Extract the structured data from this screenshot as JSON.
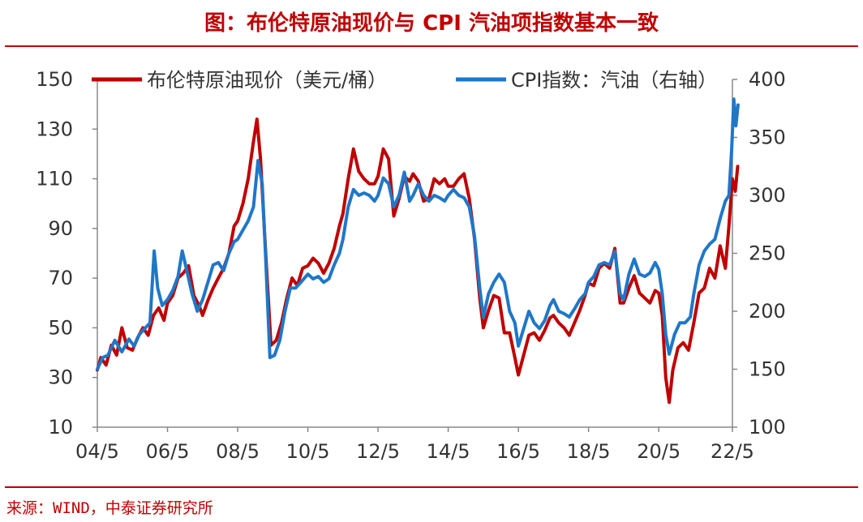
{
  "title": "图：布伦特原油现价与 CPI 汽油项指数基本一致",
  "source": "来源：WIND，中泰证券研究所",
  "colors": {
    "brent": "#C00000",
    "cpi": "#1F77C8",
    "title": "#C00000"
  },
  "chart_data": {
    "type": "line",
    "title": "图：布伦特原油现价与 CPI 汽油项指数基本一致",
    "x_tick_labels": [
      "04/5",
      "06/5",
      "08/5",
      "10/5",
      "12/5",
      "14/5",
      "16/5",
      "18/5",
      "20/5",
      "22/5"
    ],
    "x_range": [
      2004.0,
      2022.1
    ],
    "y_left": {
      "range": [
        10,
        150
      ],
      "ticks": [
        10,
        30,
        50,
        70,
        90,
        110,
        130,
        150
      ]
    },
    "y_right": {
      "range": [
        100,
        400
      ],
      "ticks": [
        100,
        150,
        200,
        250,
        300,
        350,
        400
      ]
    },
    "grid": false,
    "legend_position": "top",
    "series": [
      {
        "name": "布伦特原油现价（美元/桶）",
        "axis": "left",
        "color": "#C00000",
        "points": [
          [
            2004.0,
            33
          ],
          [
            2004.1,
            38
          ],
          [
            2004.25,
            35
          ],
          [
            2004.4,
            43
          ],
          [
            2004.55,
            39
          ],
          [
            2004.7,
            50
          ],
          [
            2004.85,
            42
          ],
          [
            2005.0,
            41
          ],
          [
            2005.15,
            46
          ],
          [
            2005.3,
            50
          ],
          [
            2005.45,
            47
          ],
          [
            2005.6,
            55
          ],
          [
            2005.75,
            58
          ],
          [
            2005.9,
            53
          ],
          [
            2006.0,
            60
          ],
          [
            2006.15,
            63
          ],
          [
            2006.3,
            70
          ],
          [
            2006.45,
            72
          ],
          [
            2006.6,
            75
          ],
          [
            2006.75,
            63
          ],
          [
            2006.9,
            59
          ],
          [
            2007.0,
            55
          ],
          [
            2007.15,
            61
          ],
          [
            2007.3,
            66
          ],
          [
            2007.45,
            70
          ],
          [
            2007.6,
            74
          ],
          [
            2007.75,
            80
          ],
          [
            2007.9,
            91
          ],
          [
            2008.0,
            93
          ],
          [
            2008.15,
            100
          ],
          [
            2008.3,
            110
          ],
          [
            2008.45,
            125
          ],
          [
            2008.55,
            134
          ],
          [
            2008.65,
            118
          ],
          [
            2008.8,
            80
          ],
          [
            2008.95,
            43
          ],
          [
            2009.1,
            45
          ],
          [
            2009.25,
            52
          ],
          [
            2009.4,
            62
          ],
          [
            2009.55,
            70
          ],
          [
            2009.7,
            67
          ],
          [
            2009.85,
            74
          ],
          [
            2010.0,
            75
          ],
          [
            2010.15,
            78
          ],
          [
            2010.3,
            76
          ],
          [
            2010.45,
            72
          ],
          [
            2010.6,
            76
          ],
          [
            2010.75,
            82
          ],
          [
            2010.9,
            91
          ],
          [
            2011.0,
            96
          ],
          [
            2011.15,
            110
          ],
          [
            2011.3,
            122
          ],
          [
            2011.45,
            113
          ],
          [
            2011.6,
            110
          ],
          [
            2011.75,
            108
          ],
          [
            2011.9,
            108
          ],
          [
            2012.0,
            111
          ],
          [
            2012.15,
            122
          ],
          [
            2012.3,
            118
          ],
          [
            2012.45,
            95
          ],
          [
            2012.6,
            102
          ],
          [
            2012.75,
            111
          ],
          [
            2012.9,
            109
          ],
          [
            2013.0,
            112
          ],
          [
            2013.15,
            109
          ],
          [
            2013.3,
            101
          ],
          [
            2013.45,
            102
          ],
          [
            2013.6,
            110
          ],
          [
            2013.75,
            108
          ],
          [
            2013.9,
            110
          ],
          [
            2014.0,
            107
          ],
          [
            2014.15,
            107
          ],
          [
            2014.3,
            110
          ],
          [
            2014.45,
            112
          ],
          [
            2014.6,
            102
          ],
          [
            2014.75,
            86
          ],
          [
            2014.9,
            62
          ],
          [
            2015.0,
            50
          ],
          [
            2015.15,
            57
          ],
          [
            2015.3,
            63
          ],
          [
            2015.45,
            62
          ],
          [
            2015.6,
            48
          ],
          [
            2015.75,
            48
          ],
          [
            2015.9,
            38
          ],
          [
            2016.0,
            31
          ],
          [
            2016.15,
            39
          ],
          [
            2016.3,
            47
          ],
          [
            2016.45,
            48
          ],
          [
            2016.6,
            45
          ],
          [
            2016.75,
            49
          ],
          [
            2016.9,
            54
          ],
          [
            2017.0,
            55
          ],
          [
            2017.15,
            52
          ],
          [
            2017.3,
            50
          ],
          [
            2017.45,
            47
          ],
          [
            2017.6,
            52
          ],
          [
            2017.75,
            57
          ],
          [
            2017.9,
            63
          ],
          [
            2018.0,
            68
          ],
          [
            2018.15,
            67
          ],
          [
            2018.3,
            74
          ],
          [
            2018.45,
            76
          ],
          [
            2018.6,
            74
          ],
          [
            2018.75,
            82
          ],
          [
            2018.9,
            60
          ],
          [
            2019.0,
            60
          ],
          [
            2019.15,
            66
          ],
          [
            2019.3,
            71
          ],
          [
            2019.45,
            64
          ],
          [
            2019.6,
            62
          ],
          [
            2019.75,
            60
          ],
          [
            2019.9,
            65
          ],
          [
            2020.0,
            64
          ],
          [
            2020.1,
            55
          ],
          [
            2020.2,
            30
          ],
          [
            2020.3,
            20
          ],
          [
            2020.4,
            33
          ],
          [
            2020.55,
            42
          ],
          [
            2020.7,
            44
          ],
          [
            2020.85,
            41
          ],
          [
            2021.0,
            52
          ],
          [
            2021.15,
            64
          ],
          [
            2021.3,
            66
          ],
          [
            2021.45,
            74
          ],
          [
            2021.6,
            70
          ],
          [
            2021.75,
            83
          ],
          [
            2021.9,
            74
          ],
          [
            2022.0,
            91
          ],
          [
            2022.1,
            110
          ],
          [
            2022.18,
            105
          ],
          [
            2022.25,
            115
          ]
        ]
      },
      {
        "name": "CPI指数：汽油（右轴）",
        "axis": "right",
        "color": "#1F77C8",
        "points": [
          [
            2004.0,
            150
          ],
          [
            2004.15,
            160
          ],
          [
            2004.3,
            162
          ],
          [
            2004.5,
            175
          ],
          [
            2004.7,
            165
          ],
          [
            2004.9,
            176
          ],
          [
            2005.05,
            170
          ],
          [
            2005.2,
            180
          ],
          [
            2005.35,
            185
          ],
          [
            2005.5,
            190
          ],
          [
            2005.62,
            252
          ],
          [
            2005.72,
            220
          ],
          [
            2005.85,
            205
          ],
          [
            2006.0,
            210
          ],
          [
            2006.15,
            218
          ],
          [
            2006.3,
            230
          ],
          [
            2006.42,
            252
          ],
          [
            2006.55,
            235
          ],
          [
            2006.7,
            215
          ],
          [
            2006.85,
            200
          ],
          [
            2007.0,
            210
          ],
          [
            2007.15,
            225
          ],
          [
            2007.3,
            240
          ],
          [
            2007.45,
            242
          ],
          [
            2007.6,
            235
          ],
          [
            2007.75,
            250
          ],
          [
            2007.9,
            260
          ],
          [
            2008.0,
            262
          ],
          [
            2008.15,
            270
          ],
          [
            2008.3,
            278
          ],
          [
            2008.45,
            290
          ],
          [
            2008.58,
            330
          ],
          [
            2008.7,
            310
          ],
          [
            2008.8,
            245
          ],
          [
            2008.92,
            160
          ],
          [
            2009.05,
            162
          ],
          [
            2009.2,
            175
          ],
          [
            2009.35,
            200
          ],
          [
            2009.5,
            220
          ],
          [
            2009.65,
            220
          ],
          [
            2009.8,
            225
          ],
          [
            2010.0,
            232
          ],
          [
            2010.15,
            228
          ],
          [
            2010.3,
            230
          ],
          [
            2010.45,
            225
          ],
          [
            2010.6,
            228
          ],
          [
            2010.75,
            240
          ],
          [
            2010.9,
            250
          ],
          [
            2011.0,
            262
          ],
          [
            2011.15,
            290
          ],
          [
            2011.3,
            305
          ],
          [
            2011.45,
            300
          ],
          [
            2011.6,
            302
          ],
          [
            2011.75,
            300
          ],
          [
            2011.9,
            295
          ],
          [
            2012.0,
            300
          ],
          [
            2012.15,
            315
          ],
          [
            2012.3,
            310
          ],
          [
            2012.45,
            290
          ],
          [
            2012.6,
            300
          ],
          [
            2012.75,
            320
          ],
          [
            2012.9,
            295
          ],
          [
            2013.0,
            300
          ],
          [
            2013.15,
            310
          ],
          [
            2013.3,
            300
          ],
          [
            2013.45,
            295
          ],
          [
            2013.6,
            300
          ],
          [
            2013.75,
            298
          ],
          [
            2013.9,
            295
          ],
          [
            2014.0,
            300
          ],
          [
            2014.15,
            305
          ],
          [
            2014.3,
            300
          ],
          [
            2014.45,
            298
          ],
          [
            2014.6,
            290
          ],
          [
            2014.75,
            265
          ],
          [
            2014.9,
            220
          ],
          [
            2015.0,
            195
          ],
          [
            2015.15,
            215
          ],
          [
            2015.3,
            225
          ],
          [
            2015.45,
            232
          ],
          [
            2015.6,
            225
          ],
          [
            2015.75,
            200
          ],
          [
            2015.9,
            190
          ],
          [
            2016.0,
            170
          ],
          [
            2016.15,
            185
          ],
          [
            2016.3,
            200
          ],
          [
            2016.45,
            190
          ],
          [
            2016.6,
            185
          ],
          [
            2016.75,
            192
          ],
          [
            2016.9,
            205
          ],
          [
            2017.0,
            210
          ],
          [
            2017.15,
            200
          ],
          [
            2017.3,
            198
          ],
          [
            2017.45,
            195
          ],
          [
            2017.6,
            202
          ],
          [
            2017.75,
            210
          ],
          [
            2017.9,
            215
          ],
          [
            2018.0,
            225
          ],
          [
            2018.15,
            230
          ],
          [
            2018.3,
            240
          ],
          [
            2018.45,
            242
          ],
          [
            2018.6,
            240
          ],
          [
            2018.75,
            252
          ],
          [
            2018.9,
            215
          ],
          [
            2019.0,
            210
          ],
          [
            2019.15,
            232
          ],
          [
            2019.3,
            245
          ],
          [
            2019.45,
            232
          ],
          [
            2019.6,
            230
          ],
          [
            2019.75,
            233
          ],
          [
            2019.9,
            242
          ],
          [
            2020.0,
            236
          ],
          [
            2020.1,
            215
          ],
          [
            2020.2,
            180
          ],
          [
            2020.3,
            163
          ],
          [
            2020.45,
            180
          ],
          [
            2020.6,
            190
          ],
          [
            2020.75,
            190
          ],
          [
            2020.9,
            195
          ],
          [
            2021.0,
            215
          ],
          [
            2021.15,
            240
          ],
          [
            2021.3,
            252
          ],
          [
            2021.45,
            258
          ],
          [
            2021.6,
            262
          ],
          [
            2021.75,
            280
          ],
          [
            2021.9,
            295
          ],
          [
            2022.0,
            300
          ],
          [
            2022.08,
            340
          ],
          [
            2022.14,
            383
          ],
          [
            2022.2,
            360
          ],
          [
            2022.26,
            378
          ]
        ]
      }
    ]
  }
}
